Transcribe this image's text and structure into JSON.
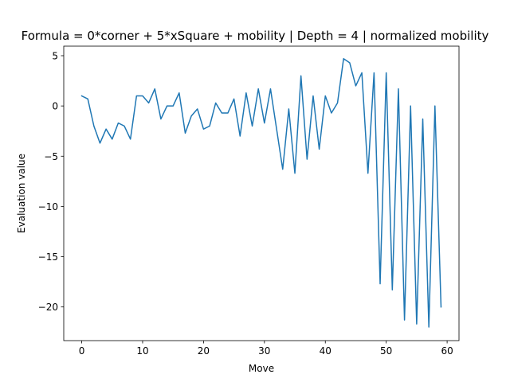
{
  "chart_data": {
    "type": "line",
    "title": "Formula = 0*corner + 5*xSquare + mobility | Depth = 4 | normalized mobility",
    "xlabel": "Move",
    "ylabel": "Evaluation value",
    "xlim": [
      -2.95,
      61.95
    ],
    "ylim": [
      -23.35,
      5.95
    ],
    "xticks": [
      0,
      10,
      20,
      30,
      40,
      50,
      60
    ],
    "yticks": [
      -20,
      -15,
      -10,
      -5,
      0,
      5
    ],
    "xtick_labels": [
      "0",
      "10",
      "20",
      "30",
      "40",
      "50",
      "60"
    ],
    "ytick_labels": [
      "−20",
      "−15",
      "−10",
      "−5",
      "0",
      "5"
    ],
    "grid": false,
    "series": [
      {
        "color": "#1f77b4",
        "x": [
          0,
          1,
          2,
          3,
          4,
          5,
          6,
          7,
          8,
          9,
          10,
          11,
          12,
          13,
          14,
          15,
          16,
          17,
          18,
          19,
          20,
          21,
          22,
          23,
          24,
          25,
          26,
          27,
          28,
          29,
          30,
          31,
          32,
          33,
          34,
          35,
          36,
          37,
          38,
          39,
          40,
          41,
          42,
          43,
          44,
          45,
          46,
          47,
          48,
          49,
          50,
          51,
          52,
          53,
          54,
          55,
          56,
          57,
          58,
          59
        ],
        "values": [
          1.0,
          0.7,
          -2.0,
          -3.7,
          -2.3,
          -3.3,
          -1.7,
          -2.0,
          -3.3,
          1.0,
          1.0,
          0.3,
          1.7,
          -1.3,
          0.0,
          0.0,
          1.3,
          -2.7,
          -1.0,
          -0.3,
          -2.3,
          -2.0,
          0.3,
          -0.7,
          -0.7,
          0.7,
          -3.0,
          1.3,
          -2.0,
          1.7,
          -1.7,
          1.7,
          -2.3,
          -6.3,
          -0.3,
          -6.7,
          3.0,
          -5.3,
          1.0,
          -4.3,
          1.0,
          -0.7,
          0.3,
          4.7,
          4.3,
          2.0,
          3.3,
          -6.7,
          3.3,
          -17.7,
          3.3,
          -18.3,
          1.7,
          -21.3,
          0.0,
          -21.7,
          -1.3,
          -22.0,
          0.0,
          -20.0
        ]
      }
    ]
  }
}
